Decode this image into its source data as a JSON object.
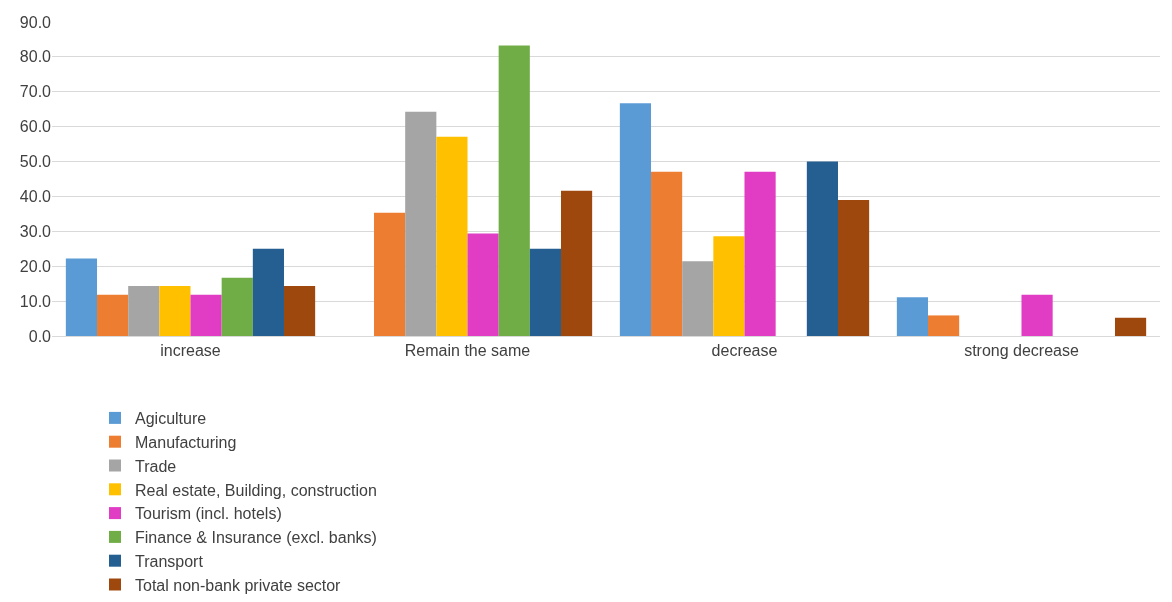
{
  "chart_data": {
    "type": "bar",
    "categories": [
      "increase",
      "Remain the same",
      "decrease",
      "strong decrease"
    ],
    "series": [
      {
        "name": "Agiculture",
        "color": "#5b9bd5",
        "values": [
          22.2,
          0,
          66.7,
          11.1
        ]
      },
      {
        "name": "Manufacturing",
        "color": "#ed7d31",
        "values": [
          11.8,
          35.3,
          47.1,
          5.9
        ]
      },
      {
        "name": "Trade",
        "color": "#a5a5a5",
        "values": [
          14.3,
          64.3,
          21.4,
          0
        ]
      },
      {
        "name": "Real estate, Building, construction",
        "color": "#ffc000",
        "values": [
          14.3,
          57.1,
          28.6,
          0
        ]
      },
      {
        "name": "Tourism (incl. hotels)",
        "color": "#e03cc4",
        "values": [
          11.8,
          29.4,
          47.1,
          11.8
        ]
      },
      {
        "name": "Finance & Insurance (excl. banks)",
        "color": "#70ad47",
        "values": [
          16.7,
          83.3,
          0,
          0
        ]
      },
      {
        "name": "Transport",
        "color": "#255e91",
        "values": [
          25.0,
          25.0,
          50.0,
          0
        ]
      },
      {
        "name": "Total non-bank private sector",
        "color": "#9e480e",
        "values": [
          14.3,
          41.6,
          39.0,
          5.2
        ]
      }
    ],
    "ylim": [
      0,
      90
    ],
    "yticks": [
      {
        "value": 0,
        "label": "0.0"
      },
      {
        "value": 10,
        "label": "10.0"
      },
      {
        "value": 20,
        "label": "20.0"
      },
      {
        "value": 30,
        "label": "30.0"
      },
      {
        "value": 40,
        "label": "40.0"
      },
      {
        "value": 50,
        "label": "50.0"
      },
      {
        "value": 60,
        "label": "60.0"
      },
      {
        "value": 70,
        "label": "70.0"
      },
      {
        "value": 80,
        "label": "80.0"
      },
      {
        "value": 90,
        "label": "90.0"
      }
    ],
    "grid": "y",
    "legend": "bottom"
  }
}
